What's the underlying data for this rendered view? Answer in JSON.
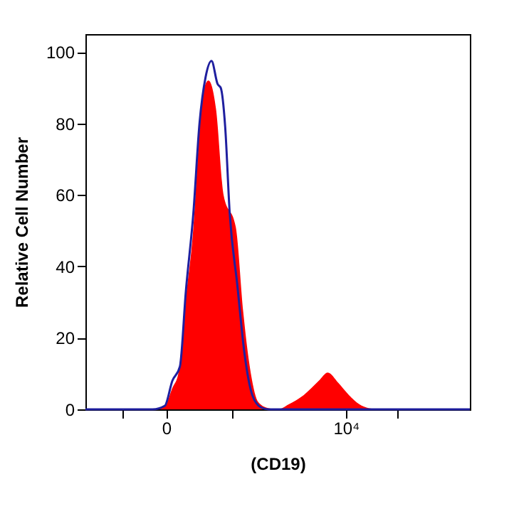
{
  "chart_data": {
    "type": "area",
    "xlabel": "(CD19)",
    "ylabel": "Relative Cell Number",
    "xlim": [
      -4500,
      16900
    ],
    "ylim": [
      0,
      105
    ],
    "xticks": [
      {
        "value": -2440,
        "label": null
      },
      {
        "value": 0,
        "label": "0"
      },
      {
        "value": 3700,
        "label": null
      },
      {
        "value": 10000,
        "label": "10⁴"
      },
      {
        "value": 12830,
        "label": null
      }
    ],
    "yticks": [
      0,
      20,
      40,
      60,
      80,
      100
    ],
    "grid": false,
    "series": [
      {
        "color": "#ff0000",
        "x": [
          -4500,
          -760,
          -80,
          340,
          670,
          1090,
          1510,
          1770,
          2020,
          2350,
          2770,
          3190,
          3870,
          4290,
          4710,
          5130,
          5710,
          6220,
          6810,
          7650,
          8490,
          8990,
          9580,
          10170,
          10760,
          11430,
          12020,
          16900
        ],
        "values": [
          0,
          0,
          1,
          6,
          10,
          31,
          51,
          72,
          88,
          92,
          84,
          60,
          51,
          27,
          10,
          2,
          0.3,
          0,
          1.4,
          4,
          8,
          10.3,
          7.4,
          4,
          1.4,
          0.2,
          0,
          0
        ]
      },
      {
        "type": "line",
        "line_style": "solid",
        "color": "#1f1f9f",
        "x": [
          -4500,
          -760,
          -80,
          340,
          760,
          1090,
          1510,
          1850,
          2190,
          2520,
          2860,
          3030,
          3280,
          3530,
          3950,
          4370,
          4790,
          5290,
          5710,
          16900
        ],
        "values": [
          0,
          0,
          1,
          8,
          12,
          33,
          55,
          80,
          93,
          97.5,
          91,
          90,
          79,
          55,
          35,
          15,
          4,
          0.5,
          0,
          0
        ]
      }
    ]
  }
}
